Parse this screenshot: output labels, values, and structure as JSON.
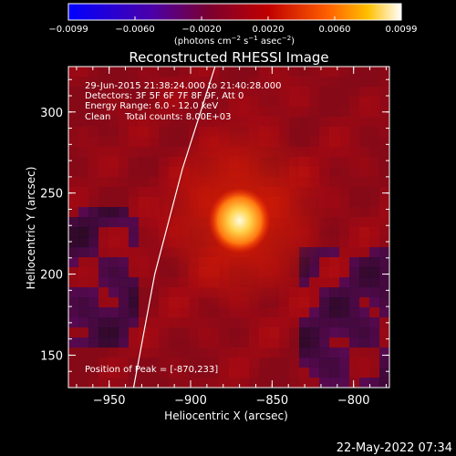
{
  "chart_data": {
    "type": "heatmap",
    "title": "Reconstructed RHESSI Image",
    "xlabel": "Heliocentric X (arcsec)",
    "ylabel": "Heliocentric Y (arcsec)",
    "xlim": [
      -975,
      -778
    ],
    "ylim": [
      130,
      328
    ],
    "xticks": [
      -950,
      -900,
      -850,
      -800
    ],
    "yticks": [
      150,
      200,
      250,
      300
    ],
    "colorbar": {
      "label_parts": [
        "(photons cm",
        "−2",
        " s",
        "−1",
        " asec",
        "−2",
        ")"
      ],
      "ticks": [
        "−0.0099",
        "−0.0060",
        "−0.0020",
        "0.0020",
        "0.0060",
        "0.0099"
      ],
      "range": [
        -0.0099,
        0.0099
      ],
      "colors": [
        "#0000ff",
        "#4b00a8",
        "#7a0030",
        "#c00000",
        "#ff6000",
        "#ffc000",
        "#ffffff"
      ]
    },
    "annotations": [
      "29-Jun-2015 21:38:24.000 to 21:40:28.000",
      "Detectors: 3F 5F 6F 7F 8F 9F, Att 0",
      "Energy Range: 6.0 - 12.0 keV",
      "Clean     Total counts: 8.00E+03"
    ],
    "peak_label": "Position of Peak = [-870,233]",
    "peak": {
      "x": -870,
      "y": 233
    },
    "limb_curve": [
      [
        -935,
        130
      ],
      [
        -922,
        200
      ],
      [
        -905,
        265
      ],
      [
        -885,
        328
      ]
    ]
  },
  "footer": {
    "date": "22-May-2022 07:34"
  }
}
